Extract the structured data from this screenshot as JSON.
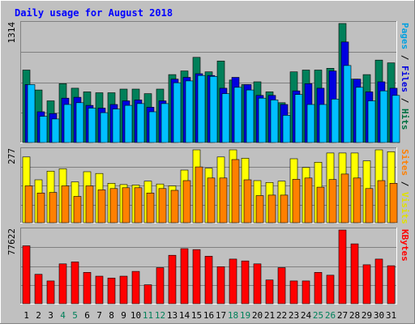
{
  "chart_data": {
    "type": "bar",
    "title": "Daily usage for August 2018",
    "days": [
      "1",
      "2",
      "3",
      "4",
      "5",
      "6",
      "7",
      "8",
      "9",
      "10",
      "11",
      "12",
      "13",
      "14",
      "15",
      "16",
      "17",
      "18",
      "19",
      "20",
      "21",
      "22",
      "23",
      "24",
      "25",
      "26",
      "27",
      "28",
      "29",
      "30",
      "31"
    ],
    "weekend_days": [
      4,
      5,
      11,
      12,
      18,
      19,
      25,
      26
    ],
    "panels": [
      {
        "id": "hits-files-pages",
        "ymax_label": "1314",
        "ymax": 1314,
        "label_parts": [
          {
            "text": "Pages",
            "color": "#00a0e0"
          },
          {
            "text": " / ",
            "color": "#000000"
          },
          {
            "text": "Files",
            "color": "#0000e0"
          },
          {
            "text": " / ",
            "color": "#000000"
          },
          {
            "text": "Hits",
            "color": "#007040"
          }
        ],
        "series": [
          {
            "key": "hits",
            "color": "#00805a",
            "values": [
              800,
              580,
              460,
              650,
              600,
              560,
              550,
              550,
              590,
              590,
              540,
              590,
              750,
              790,
              940,
              780,
              900,
              690,
              640,
              670,
              560,
              440,
              780,
              800,
              800,
              820,
              1314,
              700,
              750,
              910,
              880
            ]
          },
          {
            "key": "files",
            "color": "#0000e0",
            "values": [
              640,
              340,
              320,
              490,
              500,
              410,
              380,
              420,
              460,
              470,
              390,
              460,
              700,
              720,
              760,
              740,
              600,
              720,
              640,
              520,
              520,
              420,
              570,
              650,
              600,
              790,
              1110,
              700,
              560,
              670,
              600
            ]
          },
          {
            "key": "pages",
            "color": "#00c0ff",
            "values": [
              640,
              290,
              260,
              420,
              440,
              380,
              330,
              370,
              410,
              430,
              340,
              430,
              660,
              680,
              740,
              730,
              540,
              610,
              580,
              490,
              470,
              300,
              530,
              420,
              420,
              480,
              850,
              610,
              460,
              570,
              520
            ]
          }
        ]
      },
      {
        "id": "visits-sites",
        "ymax_label": "277",
        "ymax": 277,
        "label_parts": [
          {
            "text": "Sites",
            "color": "#ff8000"
          },
          {
            "text": " / ",
            "color": "#000000"
          },
          {
            "text": "Visits",
            "color": "#e0e000"
          }
        ],
        "series": [
          {
            "key": "visits",
            "color": "#ffff00",
            "values": [
              250,
              163,
              196,
              205,
              155,
              194,
              187,
              150,
              145,
              143,
              158,
              147,
              140,
              200,
              277,
              207,
              250,
              277,
              245,
              160,
              153,
              158,
              243,
              210,
              230,
              265,
              265,
              265,
              235,
              277,
              270
            ]
          },
          {
            "key": "sites",
            "color": "#ff8000",
            "values": [
              140,
              113,
              115,
              140,
              100,
              140,
              125,
              130,
              133,
              133,
              113,
              130,
              123,
              160,
              212,
              170,
              170,
              240,
              163,
              103,
              105,
              105,
              165,
              170,
              135,
              164,
              185,
              170,
              130,
              160,
              150
            ]
          }
        ]
      },
      {
        "id": "kbytes",
        "ymax_label": "77622",
        "ymax": 77622,
        "label_parts": [
          {
            "text": "KBytes",
            "color": "#ff0000"
          }
        ],
        "series": [
          {
            "key": "kbytes",
            "color": "#ff0000",
            "values": [
              61000,
              31000,
              24000,
              42000,
              44000,
              33000,
              29000,
              27000,
              29000,
              34000,
              20000,
              38000,
              51000,
              58000,
              57000,
              50000,
              39000,
              47000,
              45000,
              42000,
              25000,
              38000,
              24000,
              24000,
              33000,
              30000,
              77622,
              63000,
              41000,
              47000,
              40000
            ]
          }
        ]
      }
    ]
  }
}
